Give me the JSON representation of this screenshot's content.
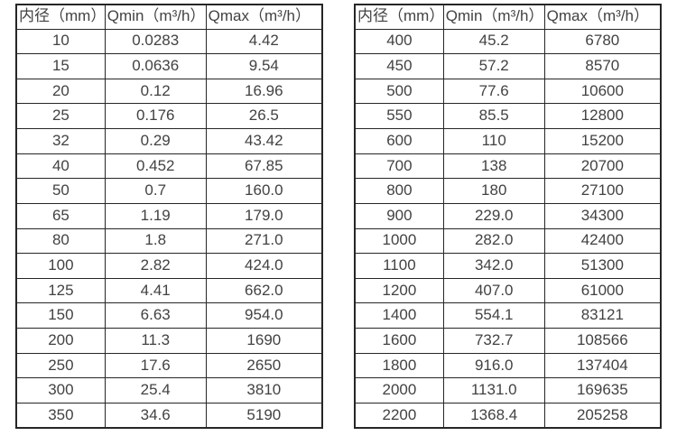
{
  "colors": {
    "background": "#ffffff",
    "table_border": "#262626",
    "table_text": "#424242"
  },
  "tables": [
    {
      "name": "flow-range-table-small-diameters",
      "headers": [
        "内径（mm）",
        "Qmin（m³/h）",
        "Qmax（m³/h）"
      ],
      "rows": [
        [
          "10",
          "0.0283",
          "4.42"
        ],
        [
          "15",
          "0.0636",
          "9.54"
        ],
        [
          "20",
          "0.12",
          "16.96"
        ],
        [
          "25",
          "0.176",
          "26.5"
        ],
        [
          "32",
          "0.29",
          "43.42"
        ],
        [
          "40",
          "0.452",
          "67.85"
        ],
        [
          "50",
          "0.7",
          "160.0"
        ],
        [
          "65",
          "1.19",
          "179.0"
        ],
        [
          "80",
          "1.8",
          "271.0"
        ],
        [
          "100",
          "2.82",
          "424.0"
        ],
        [
          "125",
          "4.41",
          "662.0"
        ],
        [
          "150",
          "6.63",
          "954.0"
        ],
        [
          "200",
          "11.3",
          "1690"
        ],
        [
          "250",
          "17.6",
          "2650"
        ],
        [
          "300",
          "25.4",
          "3810"
        ],
        [
          "350",
          "34.6",
          "5190"
        ]
      ]
    },
    {
      "name": "flow-range-table-large-diameters",
      "headers": [
        "内径（mm）",
        "Qmin（m³/h）",
        "Qmax（m³/h）"
      ],
      "rows": [
        [
          "400",
          "45.2",
          "6780"
        ],
        [
          "450",
          "57.2",
          "8570"
        ],
        [
          "500",
          "77.6",
          "10600"
        ],
        [
          "550",
          "85.5",
          "12800"
        ],
        [
          "600",
          "110",
          "15200"
        ],
        [
          "700",
          "138",
          "20700"
        ],
        [
          "800",
          "180",
          "27100"
        ],
        [
          "900",
          "229.0",
          "34300"
        ],
        [
          "1000",
          "282.0",
          "42400"
        ],
        [
          "1100",
          "342.0",
          "51300"
        ],
        [
          "1200",
          "407.0",
          "61000"
        ],
        [
          "1400",
          "554.1",
          "83121"
        ],
        [
          "1600",
          "732.7",
          "108566"
        ],
        [
          "1800",
          "916.0",
          "137404"
        ],
        [
          "2000",
          "1131.0",
          "169635"
        ],
        [
          "2200",
          "1368.4",
          "205258"
        ]
      ]
    }
  ]
}
